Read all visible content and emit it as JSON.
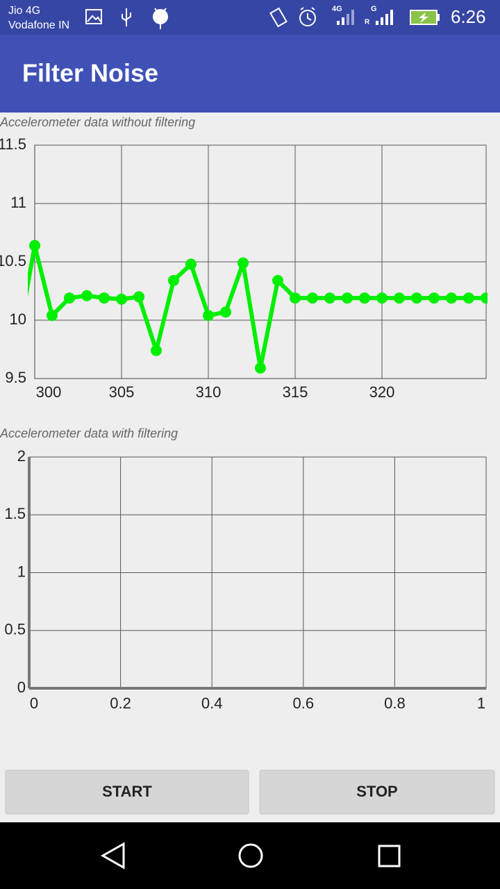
{
  "status_bar": {
    "carrier_1": "Jio 4G",
    "carrier_2": "Vodafone IN",
    "network_1": "4G",
    "network_2": "G",
    "roaming": "R",
    "time": "6:26"
  },
  "app_bar": {
    "title": "Filter Noise"
  },
  "chart_data": [
    {
      "type": "line",
      "title": "Accelerometer data without filtering",
      "x": [
        299,
        300,
        301,
        302,
        303,
        304,
        305,
        306,
        307,
        308,
        309,
        310,
        311,
        312,
        313,
        314,
        315,
        316,
        317,
        318,
        319,
        320,
        321,
        322,
        323,
        324,
        325,
        326
      ],
      "series": [
        {
          "color": "#00ee00",
          "values": [
            9.8,
            10.64,
            10.04,
            10.19,
            10.21,
            10.19,
            10.18,
            10.2,
            9.74,
            10.34,
            10.48,
            10.04,
            10.07,
            10.49,
            9.59,
            10.34,
            10.19,
            10.19,
            10.19,
            10.19,
            10.19,
            10.19,
            10.19,
            10.19,
            10.19,
            10.19,
            10.19,
            10.19
          ]
        }
      ],
      "xlim": [
        300,
        326
      ],
      "xticks": [
        300,
        305,
        310,
        315,
        320
      ],
      "ylim": [
        9.5,
        11.5
      ],
      "yticks": [
        9.5,
        10,
        10.5,
        11,
        11.5
      ],
      "grid": true
    },
    {
      "type": "line",
      "title": "Accelerometer data with filtering",
      "x": [],
      "series": [],
      "xlim": [
        0,
        1
      ],
      "xticks": [
        0,
        0.2,
        0.4,
        0.6,
        0.8,
        1
      ],
      "ylim": [
        0,
        2
      ],
      "yticks": [
        0,
        0.5,
        1,
        1.5,
        2
      ],
      "grid": true
    }
  ],
  "buttons": [
    "START",
    "STOP"
  ]
}
